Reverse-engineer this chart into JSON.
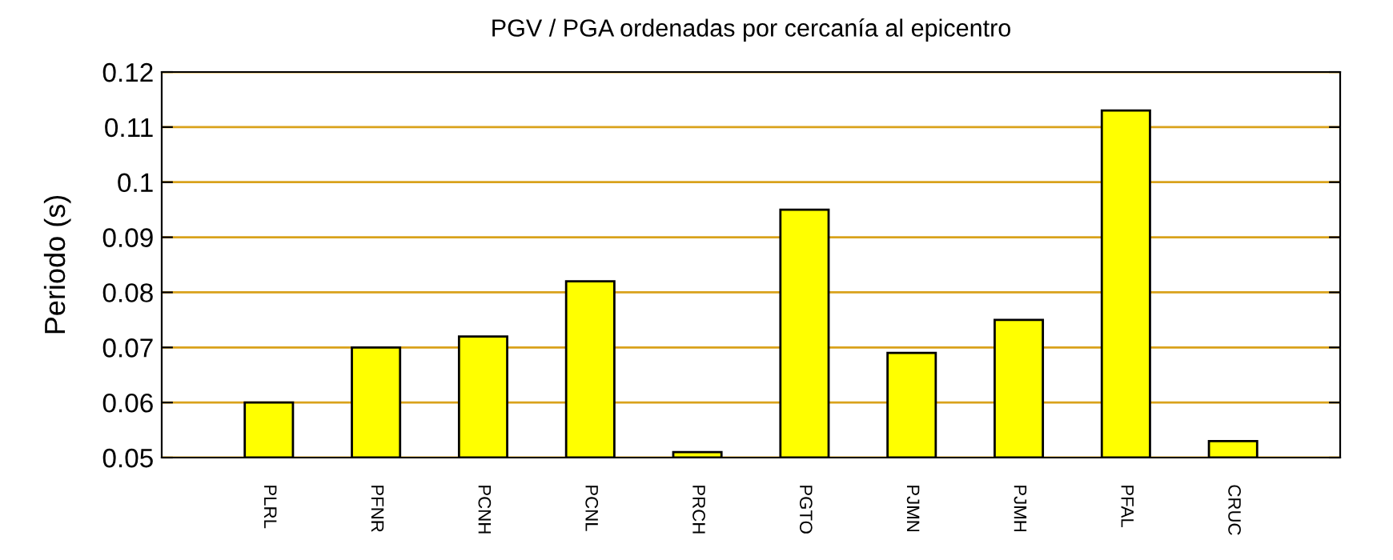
{
  "chart_data": {
    "type": "bar",
    "title": "PGV / PGA ordenadas por cercanía al epicentro",
    "ylabel": "Periodo (s)",
    "categories": [
      "PLRL",
      "PFNR",
      "PCNH",
      "PCNL",
      "PRCH",
      "PGTO",
      "PJMN",
      "PJMH",
      "PFAL",
      "CRUC"
    ],
    "values": [
      0.06,
      0.07,
      0.072,
      0.082,
      0.051,
      0.095,
      0.069,
      0.075,
      0.113,
      0.053
    ],
    "color": "#ffff00",
    "ylim": [
      0.05,
      0.12
    ],
    "yticks": [
      0.05,
      0.06,
      0.07,
      0.08,
      0.09,
      0.1,
      0.11,
      0.12
    ],
    "grid": "y",
    "legend": false
  }
}
